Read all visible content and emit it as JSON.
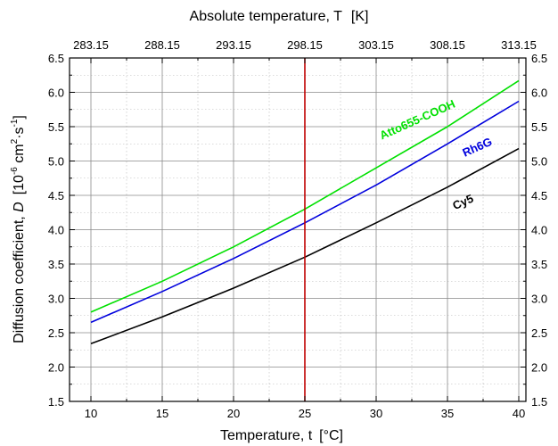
{
  "chart_data": {
    "type": "line",
    "xlabel_bottom": "Temperature, t",
    "xunit_bottom": "[°C]",
    "xlabel_top": "Absolute temperature, T",
    "xunit_top": "[K]",
    "ylabel_main": "Diffusion coefficient, ",
    "ylabel_symbol": "D",
    "ylabel_unit": "[10",
    "ylabel_exp1": "-6",
    "ylabel_cm": " cm",
    "ylabel_exp2": "2",
    "ylabel_s": "·s",
    "ylabel_exp3": "-1",
    "ylabel_close": "]",
    "xlim": [
      8.5,
      40.5
    ],
    "ylim": [
      1.5,
      6.5
    ],
    "x_ticks": [
      10,
      15,
      20,
      25,
      30,
      35,
      40
    ],
    "x_tick_labels": [
      "10",
      "15",
      "20",
      "25",
      "30",
      "35",
      "40"
    ],
    "top_ticks": [
      10,
      15,
      20,
      25,
      30,
      35,
      40
    ],
    "top_tick_labels": [
      "283.15",
      "288.15",
      "293.15",
      "298.15",
      "303.15",
      "308.15",
      "313.15"
    ],
    "y_ticks": [
      1.5,
      2.0,
      2.5,
      3.0,
      3.5,
      4.0,
      4.5,
      5.0,
      5.5,
      6.0,
      6.5
    ],
    "y_tick_labels": [
      "1.5",
      "2.0",
      "2.5",
      "3.0",
      "3.5",
      "4.0",
      "4.5",
      "5.0",
      "5.5",
      "6.0",
      "6.5"
    ],
    "grid": true,
    "vertical_marker": {
      "x": 25,
      "color": "#c00000"
    },
    "series": [
      {
        "name": "Atto655-COOH",
        "color": "#00e000",
        "x": [
          10,
          15,
          20,
          25,
          30,
          35,
          40
        ],
        "y": [
          2.8,
          3.25,
          3.75,
          4.3,
          4.9,
          5.5,
          6.17
        ]
      },
      {
        "name": "Rh6G",
        "color": "#0000dd",
        "x": [
          10,
          15,
          20,
          25,
          30,
          35,
          40
        ],
        "y": [
          2.65,
          3.1,
          3.58,
          4.1,
          4.65,
          5.25,
          5.87
        ]
      },
      {
        "name": "Cy5",
        "color": "#000000",
        "x": [
          10,
          15,
          20,
          25,
          30,
          35,
          40
        ],
        "y": [
          2.34,
          2.73,
          3.15,
          3.6,
          4.1,
          4.62,
          5.18
        ]
      }
    ]
  }
}
